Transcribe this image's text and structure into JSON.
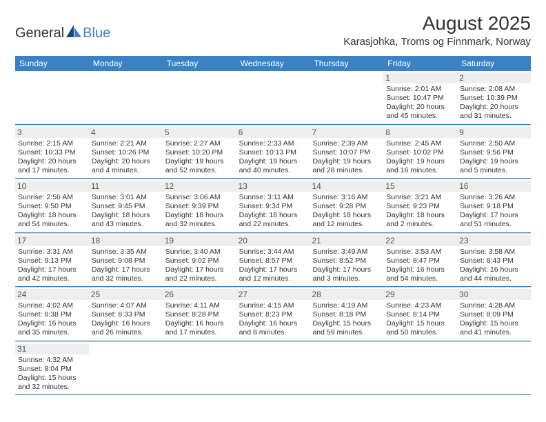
{
  "logo": {
    "text_general": "General",
    "text_blue": "Blue",
    "icon_color_dark": "#1a4a7a",
    "icon_color_light": "#3b82c4"
  },
  "title": "August 2025",
  "location": "Karasjohka, Troms og Finnmark, Norway",
  "header_bg": "#3b82c4",
  "header_text_color": "#ffffff",
  "row_border_color": "#3b82c4",
  "cell_divider_color": "#cccccc",
  "daynum_bg": "#eeeeee",
  "day_headers": [
    "Sunday",
    "Monday",
    "Tuesday",
    "Wednesday",
    "Thursday",
    "Friday",
    "Saturday"
  ],
  "weeks": [
    [
      {
        "n": "",
        "sunrise": "",
        "sunset": "",
        "daylight": ""
      },
      {
        "n": "",
        "sunrise": "",
        "sunset": "",
        "daylight": ""
      },
      {
        "n": "",
        "sunrise": "",
        "sunset": "",
        "daylight": ""
      },
      {
        "n": "",
        "sunrise": "",
        "sunset": "",
        "daylight": ""
      },
      {
        "n": "",
        "sunrise": "",
        "sunset": "",
        "daylight": ""
      },
      {
        "n": "1",
        "sunrise": "Sunrise: 2:01 AM",
        "sunset": "Sunset: 10:47 PM",
        "daylight": "Daylight: 20 hours and 45 minutes."
      },
      {
        "n": "2",
        "sunrise": "Sunrise: 2:08 AM",
        "sunset": "Sunset: 10:39 PM",
        "daylight": "Daylight: 20 hours and 31 minutes."
      }
    ],
    [
      {
        "n": "3",
        "sunrise": "Sunrise: 2:15 AM",
        "sunset": "Sunset: 10:33 PM",
        "daylight": "Daylight: 20 hours and 17 minutes."
      },
      {
        "n": "4",
        "sunrise": "Sunrise: 2:21 AM",
        "sunset": "Sunset: 10:26 PM",
        "daylight": "Daylight: 20 hours and 4 minutes."
      },
      {
        "n": "5",
        "sunrise": "Sunrise: 2:27 AM",
        "sunset": "Sunset: 10:20 PM",
        "daylight": "Daylight: 19 hours and 52 minutes."
      },
      {
        "n": "6",
        "sunrise": "Sunrise: 2:33 AM",
        "sunset": "Sunset: 10:13 PM",
        "daylight": "Daylight: 19 hours and 40 minutes."
      },
      {
        "n": "7",
        "sunrise": "Sunrise: 2:39 AM",
        "sunset": "Sunset: 10:07 PM",
        "daylight": "Daylight: 19 hours and 28 minutes."
      },
      {
        "n": "8",
        "sunrise": "Sunrise: 2:45 AM",
        "sunset": "Sunset: 10:02 PM",
        "daylight": "Daylight: 19 hours and 16 minutes."
      },
      {
        "n": "9",
        "sunrise": "Sunrise: 2:50 AM",
        "sunset": "Sunset: 9:56 PM",
        "daylight": "Daylight: 19 hours and 5 minutes."
      }
    ],
    [
      {
        "n": "10",
        "sunrise": "Sunrise: 2:56 AM",
        "sunset": "Sunset: 9:50 PM",
        "daylight": "Daylight: 18 hours and 54 minutes."
      },
      {
        "n": "11",
        "sunrise": "Sunrise: 3:01 AM",
        "sunset": "Sunset: 9:45 PM",
        "daylight": "Daylight: 18 hours and 43 minutes."
      },
      {
        "n": "12",
        "sunrise": "Sunrise: 3:06 AM",
        "sunset": "Sunset: 9:39 PM",
        "daylight": "Daylight: 18 hours and 32 minutes."
      },
      {
        "n": "13",
        "sunrise": "Sunrise: 3:11 AM",
        "sunset": "Sunset: 9:34 PM",
        "daylight": "Daylight: 18 hours and 22 minutes."
      },
      {
        "n": "14",
        "sunrise": "Sunrise: 3:16 AM",
        "sunset": "Sunset: 9:28 PM",
        "daylight": "Daylight: 18 hours and 12 minutes."
      },
      {
        "n": "15",
        "sunrise": "Sunrise: 3:21 AM",
        "sunset": "Sunset: 9:23 PM",
        "daylight": "Daylight: 18 hours and 2 minutes."
      },
      {
        "n": "16",
        "sunrise": "Sunrise: 3:26 AM",
        "sunset": "Sunset: 9:18 PM",
        "daylight": "Daylight: 17 hours and 51 minutes."
      }
    ],
    [
      {
        "n": "17",
        "sunrise": "Sunrise: 3:31 AM",
        "sunset": "Sunset: 9:13 PM",
        "daylight": "Daylight: 17 hours and 42 minutes."
      },
      {
        "n": "18",
        "sunrise": "Sunrise: 3:35 AM",
        "sunset": "Sunset: 9:08 PM",
        "daylight": "Daylight: 17 hours and 32 minutes."
      },
      {
        "n": "19",
        "sunrise": "Sunrise: 3:40 AM",
        "sunset": "Sunset: 9:02 PM",
        "daylight": "Daylight: 17 hours and 22 minutes."
      },
      {
        "n": "20",
        "sunrise": "Sunrise: 3:44 AM",
        "sunset": "Sunset: 8:57 PM",
        "daylight": "Daylight: 17 hours and 12 minutes."
      },
      {
        "n": "21",
        "sunrise": "Sunrise: 3:49 AM",
        "sunset": "Sunset: 8:52 PM",
        "daylight": "Daylight: 17 hours and 3 minutes."
      },
      {
        "n": "22",
        "sunrise": "Sunrise: 3:53 AM",
        "sunset": "Sunset: 8:47 PM",
        "daylight": "Daylight: 16 hours and 54 minutes."
      },
      {
        "n": "23",
        "sunrise": "Sunrise: 3:58 AM",
        "sunset": "Sunset: 8:43 PM",
        "daylight": "Daylight: 16 hours and 44 minutes."
      }
    ],
    [
      {
        "n": "24",
        "sunrise": "Sunrise: 4:02 AM",
        "sunset": "Sunset: 8:38 PM",
        "daylight": "Daylight: 16 hours and 35 minutes."
      },
      {
        "n": "25",
        "sunrise": "Sunrise: 4:07 AM",
        "sunset": "Sunset: 8:33 PM",
        "daylight": "Daylight: 16 hours and 26 minutes."
      },
      {
        "n": "26",
        "sunrise": "Sunrise: 4:11 AM",
        "sunset": "Sunset: 8:28 PM",
        "daylight": "Daylight: 16 hours and 17 minutes."
      },
      {
        "n": "27",
        "sunrise": "Sunrise: 4:15 AM",
        "sunset": "Sunset: 8:23 PM",
        "daylight": "Daylight: 16 hours and 8 minutes."
      },
      {
        "n": "28",
        "sunrise": "Sunrise: 4:19 AM",
        "sunset": "Sunset: 8:18 PM",
        "daylight": "Daylight: 15 hours and 59 minutes."
      },
      {
        "n": "29",
        "sunrise": "Sunrise: 4:23 AM",
        "sunset": "Sunset: 8:14 PM",
        "daylight": "Daylight: 15 hours and 50 minutes."
      },
      {
        "n": "30",
        "sunrise": "Sunrise: 4:28 AM",
        "sunset": "Sunset: 8:09 PM",
        "daylight": "Daylight: 15 hours and 41 minutes."
      }
    ],
    [
      {
        "n": "31",
        "sunrise": "Sunrise: 4:32 AM",
        "sunset": "Sunset: 8:04 PM",
        "daylight": "Daylight: 15 hours and 32 minutes."
      },
      {
        "n": "",
        "sunrise": "",
        "sunset": "",
        "daylight": ""
      },
      {
        "n": "",
        "sunrise": "",
        "sunset": "",
        "daylight": ""
      },
      {
        "n": "",
        "sunrise": "",
        "sunset": "",
        "daylight": ""
      },
      {
        "n": "",
        "sunrise": "",
        "sunset": "",
        "daylight": ""
      },
      {
        "n": "",
        "sunrise": "",
        "sunset": "",
        "daylight": ""
      },
      {
        "n": "",
        "sunrise": "",
        "sunset": "",
        "daylight": ""
      }
    ]
  ]
}
